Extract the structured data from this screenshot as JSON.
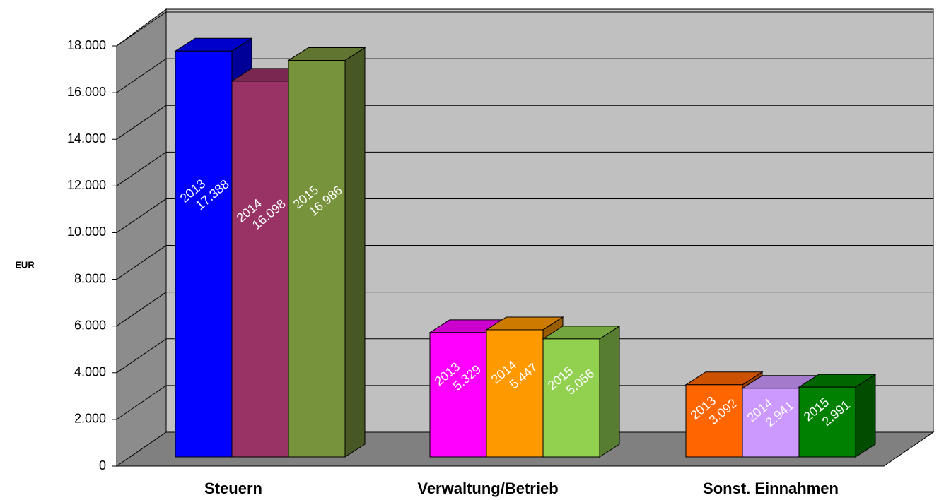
{
  "chart_data": {
    "type": "bar3d",
    "y_label": "EUR",
    "categories": [
      "Steuern",
      "Verwaltung/Betrieb",
      "Sonst. Einnahmen"
    ],
    "series": [
      {
        "name": "2013",
        "colors": [
          "#0000ff",
          "#ff00ff",
          "#ff6600"
        ],
        "values": [
          17388,
          5329,
          3092
        ],
        "value_labels": [
          "17.388",
          "5.329",
          "3.092"
        ]
      },
      {
        "name": "2014",
        "colors": [
          "#993366",
          "#ff9900",
          "#cc99ff"
        ],
        "values": [
          16098,
          5447,
          2941
        ],
        "value_labels": [
          "16.098",
          "5.447",
          "2.941"
        ]
      },
      {
        "name": "2015",
        "colors": [
          "#77933c",
          "#92d050",
          "#008000"
        ],
        "values": [
          16986,
          5056,
          2991
        ],
        "value_labels": [
          "16.986",
          "5.056",
          "2.991"
        ]
      }
    ],
    "ylim": [
      0,
      18000
    ],
    "yticks": [
      0,
      {
        "value": 2000,
        "label": "2.000"
      },
      {
        "value": 4000,
        "label": "4.000"
      },
      {
        "value": 6000,
        "label": "6.000"
      },
      {
        "value": 8000,
        "label": "8.000"
      },
      {
        "value": 10000,
        "label": "10.000"
      },
      {
        "value": 12000,
        "label": "12.000"
      },
      {
        "value": 14000,
        "label": "14.000"
      },
      {
        "value": 16000,
        "label": "16.000"
      },
      {
        "value": 18000,
        "label": "18.000"
      }
    ],
    "grid": true
  }
}
